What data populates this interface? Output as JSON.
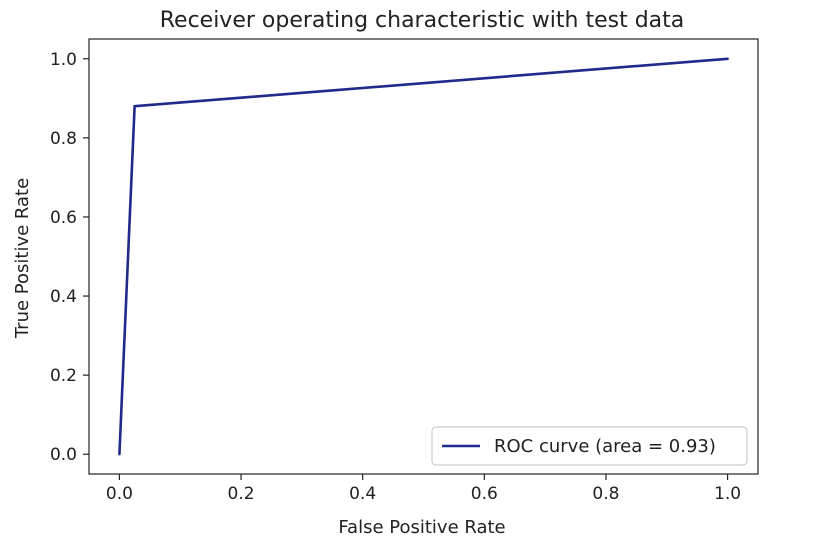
{
  "chart_data": {
    "type": "line",
    "title": "Receiver operating characteristic with test data",
    "xlabel": "False Positive Rate",
    "ylabel": "True Positive Rate",
    "xlim": [
      -0.05,
      1.05
    ],
    "ylim": [
      -0.05,
      1.05
    ],
    "xticks": [
      0.0,
      0.2,
      0.4,
      0.6,
      0.8,
      1.0
    ],
    "yticks": [
      0.0,
      0.2,
      0.4,
      0.6,
      0.8,
      1.0
    ],
    "xtick_labels": [
      "0.0",
      "0.2",
      "0.4",
      "0.6",
      "0.8",
      "1.0"
    ],
    "ytick_labels": [
      "0.0",
      "0.2",
      "0.4",
      "0.6",
      "0.8",
      "1.0"
    ],
    "grid": false,
    "legend_position": "lower-right",
    "series": [
      {
        "name": "ROC curve (area = 0.93)",
        "color": "#1f2a8c",
        "x": [
          0.0,
          0.025,
          1.0
        ],
        "y": [
          0.0,
          0.88,
          1.0
        ]
      }
    ]
  }
}
